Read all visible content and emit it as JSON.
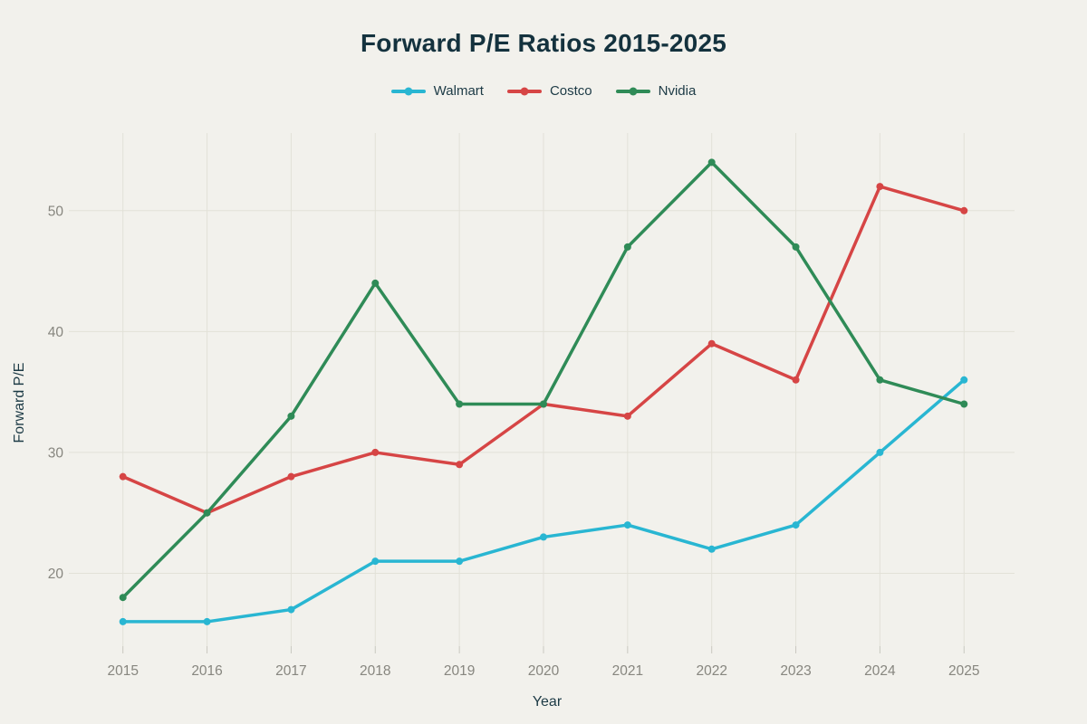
{
  "page": {
    "title": "Forward P/E Ratios 2015-2025",
    "x_axis_title": "Year",
    "y_axis_title": "Forward P/E"
  },
  "chart_data": {
    "type": "line",
    "title": "Forward P/E Ratios 2015-2025",
    "xlabel": "Year",
    "ylabel": "Forward P/E",
    "x": [
      2015,
      2016,
      2017,
      2018,
      2019,
      2020,
      2021,
      2022,
      2023,
      2024,
      2025
    ],
    "series": [
      {
        "name": "Walmart",
        "color": "#29b6d2",
        "values": [
          16,
          16,
          17,
          21,
          21,
          23,
          24,
          22,
          24,
          30,
          36
        ]
      },
      {
        "name": "Costco",
        "color": "#d64545",
        "values": [
          28,
          25,
          28,
          30,
          29,
          34,
          33,
          39,
          36,
          52,
          50
        ]
      },
      {
        "name": "Nvidia",
        "color": "#2f8b57",
        "values": [
          18,
          25,
          33,
          44,
          34,
          34,
          47,
          54,
          47,
          36,
          34
        ]
      }
    ],
    "yticks": [
      20,
      30,
      40,
      50
    ],
    "ylim": [
      13.5,
      56.5
    ],
    "grid": true,
    "legend_position": "top-center",
    "markers": true
  },
  "colors": {
    "background": "#f2f1ec",
    "gridline": "#e2e1d8",
    "tick_mark": "#c9c8c0",
    "tick_label": "#87867f",
    "dark_text": "#14323e"
  }
}
